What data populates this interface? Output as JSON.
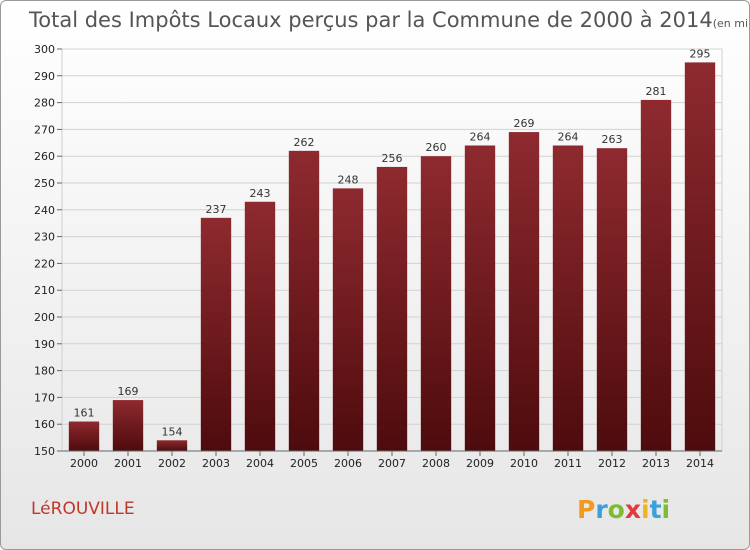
{
  "chart_data": {
    "type": "bar",
    "title": "Total des Impôts Locaux perçus par la Commune de 2000 à 2014",
    "subtitle": "(en milliers d'€)",
    "categories": [
      "2000",
      "2001",
      "2002",
      "2003",
      "2004",
      "2005",
      "2006",
      "2007",
      "2008",
      "2009",
      "2010",
      "2011",
      "2012",
      "2013",
      "2014"
    ],
    "values": [
      161,
      169,
      154,
      237,
      243,
      262,
      248,
      256,
      260,
      264,
      269,
      264,
      263,
      281,
      295
    ],
    "ylim": [
      150,
      300
    ],
    "yticks": [
      150,
      160,
      170,
      180,
      190,
      200,
      210,
      220,
      230,
      240,
      250,
      260,
      270,
      280,
      290,
      300
    ],
    "xlabel": "",
    "ylabel": "",
    "grid": true,
    "bar_color_top": "#8e2a2f",
    "bar_color_bottom": "#4e0b0d"
  },
  "commune": "LéROUVILLE",
  "brand": {
    "letters": [
      "P",
      "r",
      "o",
      "x",
      "i",
      "t",
      "i"
    ],
    "colors": [
      "#f29a1f",
      "#3aa0d8",
      "#7cbd35",
      "#e23b3b",
      "#f2b21f",
      "#3aa0d8",
      "#7cbd35"
    ]
  }
}
